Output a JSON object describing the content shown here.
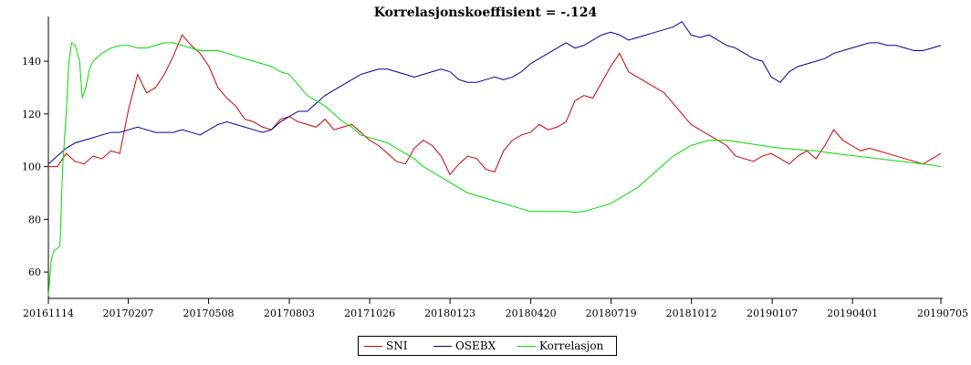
{
  "chart_data": {
    "type": "line",
    "title": "Korrelasjonskoeffisient =  -.124",
    "xlabel": "",
    "ylabel": "",
    "ylim": [
      50,
      157
    ],
    "yticks": [
      60,
      80,
      100,
      120,
      140
    ],
    "xlim": [
      0,
      100
    ],
    "xticks": [
      {
        "pos": 0,
        "label": "20161114"
      },
      {
        "pos": 8.95,
        "label": "20170207"
      },
      {
        "pos": 17.95,
        "label": "20170508"
      },
      {
        "pos": 27.0,
        "label": "20170803"
      },
      {
        "pos": 36.0,
        "label": "20171026"
      },
      {
        "pos": 45.0,
        "label": "20180123"
      },
      {
        "pos": 54.05,
        "label": "20180420"
      },
      {
        "pos": 63.05,
        "label": "20180719"
      },
      {
        "pos": 72.05,
        "label": "20181012"
      },
      {
        "pos": 81.1,
        "label": "20190107"
      },
      {
        "pos": 90.1,
        "label": "20190401"
      },
      {
        "pos": 100,
        "label": "20190705"
      }
    ],
    "grid": false,
    "legend_position": "bottom-center",
    "series": [
      {
        "name": "SNI",
        "color": "#cc0000",
        "x": [
          0,
          1,
          2,
          3,
          4,
          5,
          6,
          7,
          8,
          9,
          10,
          11,
          12,
          13,
          14,
          15,
          16,
          17,
          18,
          19,
          20,
          21,
          22,
          23,
          24,
          25,
          26,
          27,
          28,
          29,
          30,
          31,
          32,
          33,
          34,
          35,
          36,
          37,
          38,
          39,
          40,
          41,
          42,
          43,
          44,
          45,
          46,
          47,
          48,
          49,
          50,
          51,
          52,
          53,
          54,
          55,
          56,
          57,
          58,
          59,
          60,
          61,
          62,
          63,
          64,
          65,
          66,
          67,
          68,
          69,
          70,
          71,
          72,
          73,
          74,
          75,
          76,
          77,
          78,
          79,
          80,
          81,
          82,
          83,
          84,
          85,
          86,
          87,
          88,
          89,
          90,
          91,
          92,
          93,
          94,
          95,
          96,
          97,
          98,
          99,
          100
        ],
        "values": [
          100,
          100,
          105,
          102,
          101,
          104,
          103,
          106,
          105,
          122,
          135,
          128,
          130,
          135,
          142,
          150,
          146,
          143,
          138,
          130,
          126,
          123,
          118,
          117,
          115,
          114,
          118,
          119,
          117,
          116,
          115,
          118,
          114,
          115,
          116,
          113,
          110,
          108,
          105,
          102,
          101,
          107,
          110,
          108,
          104,
          97,
          101,
          104,
          103,
          99,
          98,
          106,
          110,
          112,
          113,
          116,
          114,
          115,
          117,
          125,
          127,
          126,
          132,
          138,
          143,
          136,
          134,
          132,
          130,
          128,
          124,
          120,
          116,
          114,
          112,
          110,
          108,
          104,
          103,
          102,
          104,
          105,
          103,
          101,
          104,
          106,
          103,
          108,
          114,
          110,
          108,
          106,
          107,
          106,
          105,
          104,
          103,
          102,
          101,
          103,
          105
        ]
      },
      {
        "name": "OSEBX",
        "color": "#000099",
        "x": [
          0,
          1,
          2,
          3,
          4,
          5,
          6,
          7,
          8,
          9,
          10,
          11,
          12,
          13,
          14,
          15,
          16,
          17,
          18,
          19,
          20,
          21,
          22,
          23,
          24,
          25,
          26,
          27,
          28,
          29,
          30,
          31,
          32,
          33,
          34,
          35,
          36,
          37,
          38,
          39,
          40,
          41,
          42,
          43,
          44,
          45,
          46,
          47,
          48,
          49,
          50,
          51,
          52,
          53,
          54,
          55,
          56,
          57,
          58,
          59,
          60,
          61,
          62,
          63,
          64,
          65,
          66,
          67,
          68,
          69,
          70,
          71,
          72,
          73,
          74,
          75,
          76,
          77,
          78,
          79,
          80,
          81,
          82,
          83,
          84,
          85,
          86,
          87,
          88,
          89,
          90,
          91,
          92,
          93,
          94,
          95,
          96,
          97,
          98,
          99,
          100
        ],
        "values": [
          101,
          104,
          107,
          109,
          110,
          111,
          112,
          113,
          113,
          114,
          115,
          114,
          113,
          113,
          113,
          114,
          113,
          112,
          114,
          116,
          117,
          116,
          115,
          114,
          113,
          114,
          117,
          119,
          121,
          121,
          124,
          127,
          129,
          131,
          133,
          135,
          136,
          137,
          137,
          136,
          135,
          134,
          135,
          136,
          137,
          136,
          133,
          132,
          132,
          133,
          134,
          133,
          134,
          136,
          139,
          141,
          143,
          145,
          147,
          145,
          146,
          148,
          150,
          151,
          150,
          148,
          149,
          150,
          151,
          152,
          153,
          155,
          150,
          149,
          150,
          148,
          146,
          145,
          143,
          141,
          140,
          134,
          132,
          136,
          138,
          139,
          140,
          141,
          143,
          144,
          145,
          146,
          147,
          147,
          146,
          146,
          145,
          144,
          144,
          145,
          146
        ]
      },
      {
        "name": "Korrelasjon",
        "color": "#00dd00",
        "x": [
          0,
          0.3,
          0.6,
          1.0,
          1.3,
          1.6,
          2.0,
          2.3,
          2.6,
          3.0,
          3.5,
          3.8,
          4.2,
          4.6,
          5.0,
          6.0,
          7.0,
          8.0,
          9.0,
          10,
          11,
          12,
          13,
          14,
          15,
          16,
          17,
          18,
          19,
          20,
          21,
          22,
          23,
          24,
          25,
          26,
          27,
          28,
          29,
          30,
          31,
          32,
          33,
          34,
          35,
          36,
          37,
          38,
          39,
          40,
          41,
          42,
          43,
          44,
          45,
          46,
          47,
          48,
          49,
          50,
          51,
          52,
          53,
          54,
          55,
          56,
          57,
          58,
          59,
          60,
          61,
          62,
          63,
          64,
          65,
          66,
          67,
          68,
          69,
          70,
          71,
          72,
          73,
          74,
          75,
          76,
          77,
          78,
          79,
          80,
          81,
          82,
          83,
          84,
          85,
          86,
          87,
          88,
          89,
          90,
          91,
          92,
          93,
          94,
          95,
          96,
          97,
          98,
          99,
          100
        ],
        "values": [
          51,
          64,
          68,
          69,
          70,
          100,
          120,
          140,
          147,
          146,
          140,
          126,
          130,
          137,
          140,
          143,
          145,
          146,
          146,
          145,
          145,
          146,
          147,
          147,
          146,
          145,
          144,
          144,
          144,
          143,
          142,
          141,
          140,
          139,
          138,
          136,
          135,
          131,
          127,
          125,
          123,
          120,
          117,
          115,
          112,
          111,
          110,
          109,
          107,
          105,
          103,
          100,
          98,
          96,
          94,
          92,
          90,
          89,
          88,
          87,
          86,
          85,
          84,
          83,
          83,
          83,
          83,
          83,
          82.7,
          83,
          84,
          85,
          86,
          88,
          90,
          92,
          95,
          98,
          101,
          104,
          106,
          108,
          109,
          110,
          110,
          110,
          109.5,
          109,
          108.5,
          108,
          107.5,
          107,
          106.8,
          106.5,
          106.2,
          106,
          105.5,
          105,
          104.6,
          104.2,
          103.8,
          103.4,
          103,
          102.6,
          102.2,
          101.8,
          101.4,
          101,
          100.6,
          100
        ]
      }
    ]
  }
}
